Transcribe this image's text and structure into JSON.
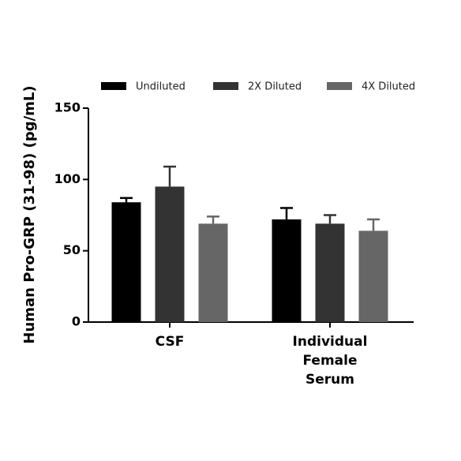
{
  "chart_data": {
    "type": "bar",
    "y_label": "Human Pro-GRP (31-98) (pg/mL)",
    "categories": [
      "CSF",
      "Individual Female Serum"
    ],
    "series": [
      {
        "name": "Undiluted",
        "color": "#000000",
        "values": [
          84,
          72
        ],
        "errors": [
          3,
          8
        ]
      },
      {
        "name": "2X Diluted",
        "color": "#333333",
        "values": [
          95,
          69
        ],
        "errors": [
          14,
          6
        ]
      },
      {
        "name": "4X Diluted",
        "color": "#666666",
        "values": [
          69,
          64
        ],
        "errors": [
          5,
          8
        ]
      }
    ],
    "ylim": [
      0,
      150
    ],
    "yticks": [
      0,
      50,
      100,
      150
    ]
  }
}
